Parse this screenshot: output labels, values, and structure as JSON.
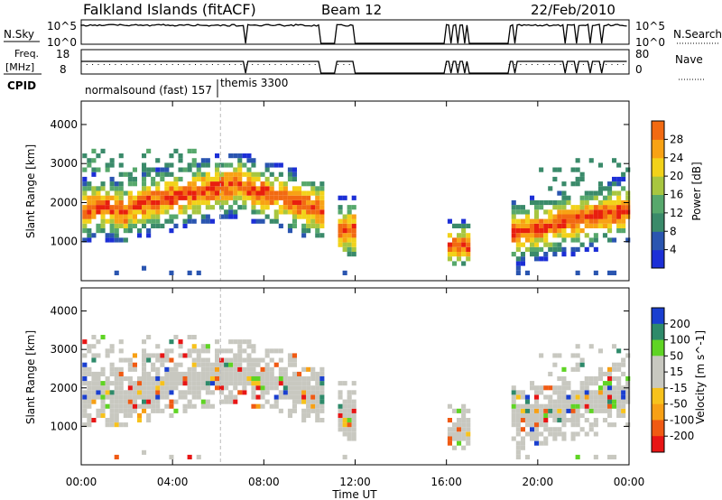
{
  "header": {
    "station": "Falkland Islands (fitACF)",
    "beam": "Beam 12",
    "date": "22/Feb/2010"
  },
  "strips": {
    "nsky_label": "N.Sky",
    "nsky_ticks": [
      "10^5",
      "10^0"
    ],
    "nsearch_label": "N.Search",
    "nsearch_ticks": [
      "10^5",
      "10^0"
    ],
    "freq_label_1": "Freq.",
    "freq_label_2": "[MHz]",
    "freq_ticks": [
      "18",
      "8"
    ],
    "nave_label": "Nave",
    "nave_ticks": [
      "80",
      "0"
    ],
    "cpid_label": "CPID",
    "cpid_modes": [
      "normalsound (fast) 157",
      "themis 3300"
    ]
  },
  "colors": {
    "power": [
      "#1c2fd6",
      "#2a55b0",
      "#3a8a6a",
      "#57a86c",
      "#a8c640",
      "#f2d21a",
      "#f8a214",
      "#f26a12",
      "#e81f0e"
    ],
    "velocity": [
      "#e81515",
      "#f05a13",
      "#f7a015",
      "#f7c21c",
      "#c8c8c0",
      "#c8c8c0",
      "#5fd424",
      "#2e8a6a",
      "#1a3fd0"
    ],
    "ground_scatter": "#c8c8c0"
  },
  "chart_data": [
    {
      "type": "heatmap",
      "name": "power",
      "ylabel": "Slant Range [km]",
      "colorbar_label": "Power [dB]",
      "colorbar_ticks": [
        4,
        8,
        12,
        16,
        20,
        24,
        28
      ],
      "ylim": [
        0,
        4600
      ],
      "yticks": [
        1000,
        2000,
        3000,
        4000
      ],
      "x_ticks": [
        "00:00",
        "04:00",
        "08:00",
        "12:00",
        "16:00",
        "20:00",
        "00:00"
      ],
      "xlim_hours": [
        0,
        24
      ],
      "data_gaps_hours": [
        [
          10.5,
          11.1
        ],
        [
          12.0,
          15.9
        ],
        [
          17.0,
          18.7
        ]
      ]
    },
    {
      "type": "heatmap",
      "name": "velocity",
      "ylabel": "Slant Range [km]",
      "colorbar_label": "Velocity [m s^-1]",
      "colorbar_ticks": [
        200,
        100,
        50,
        15,
        -15,
        -50,
        -100,
        -200
      ],
      "ylim": [
        0,
        4600
      ],
      "yticks": [
        1000,
        2000,
        3000,
        4000
      ],
      "x_ticks": [
        "00:00",
        "04:00",
        "08:00",
        "12:00",
        "16:00",
        "20:00",
        "00:00"
      ],
      "xlim_hours": [
        0,
        24
      ],
      "xlabel": "Time UT"
    }
  ]
}
